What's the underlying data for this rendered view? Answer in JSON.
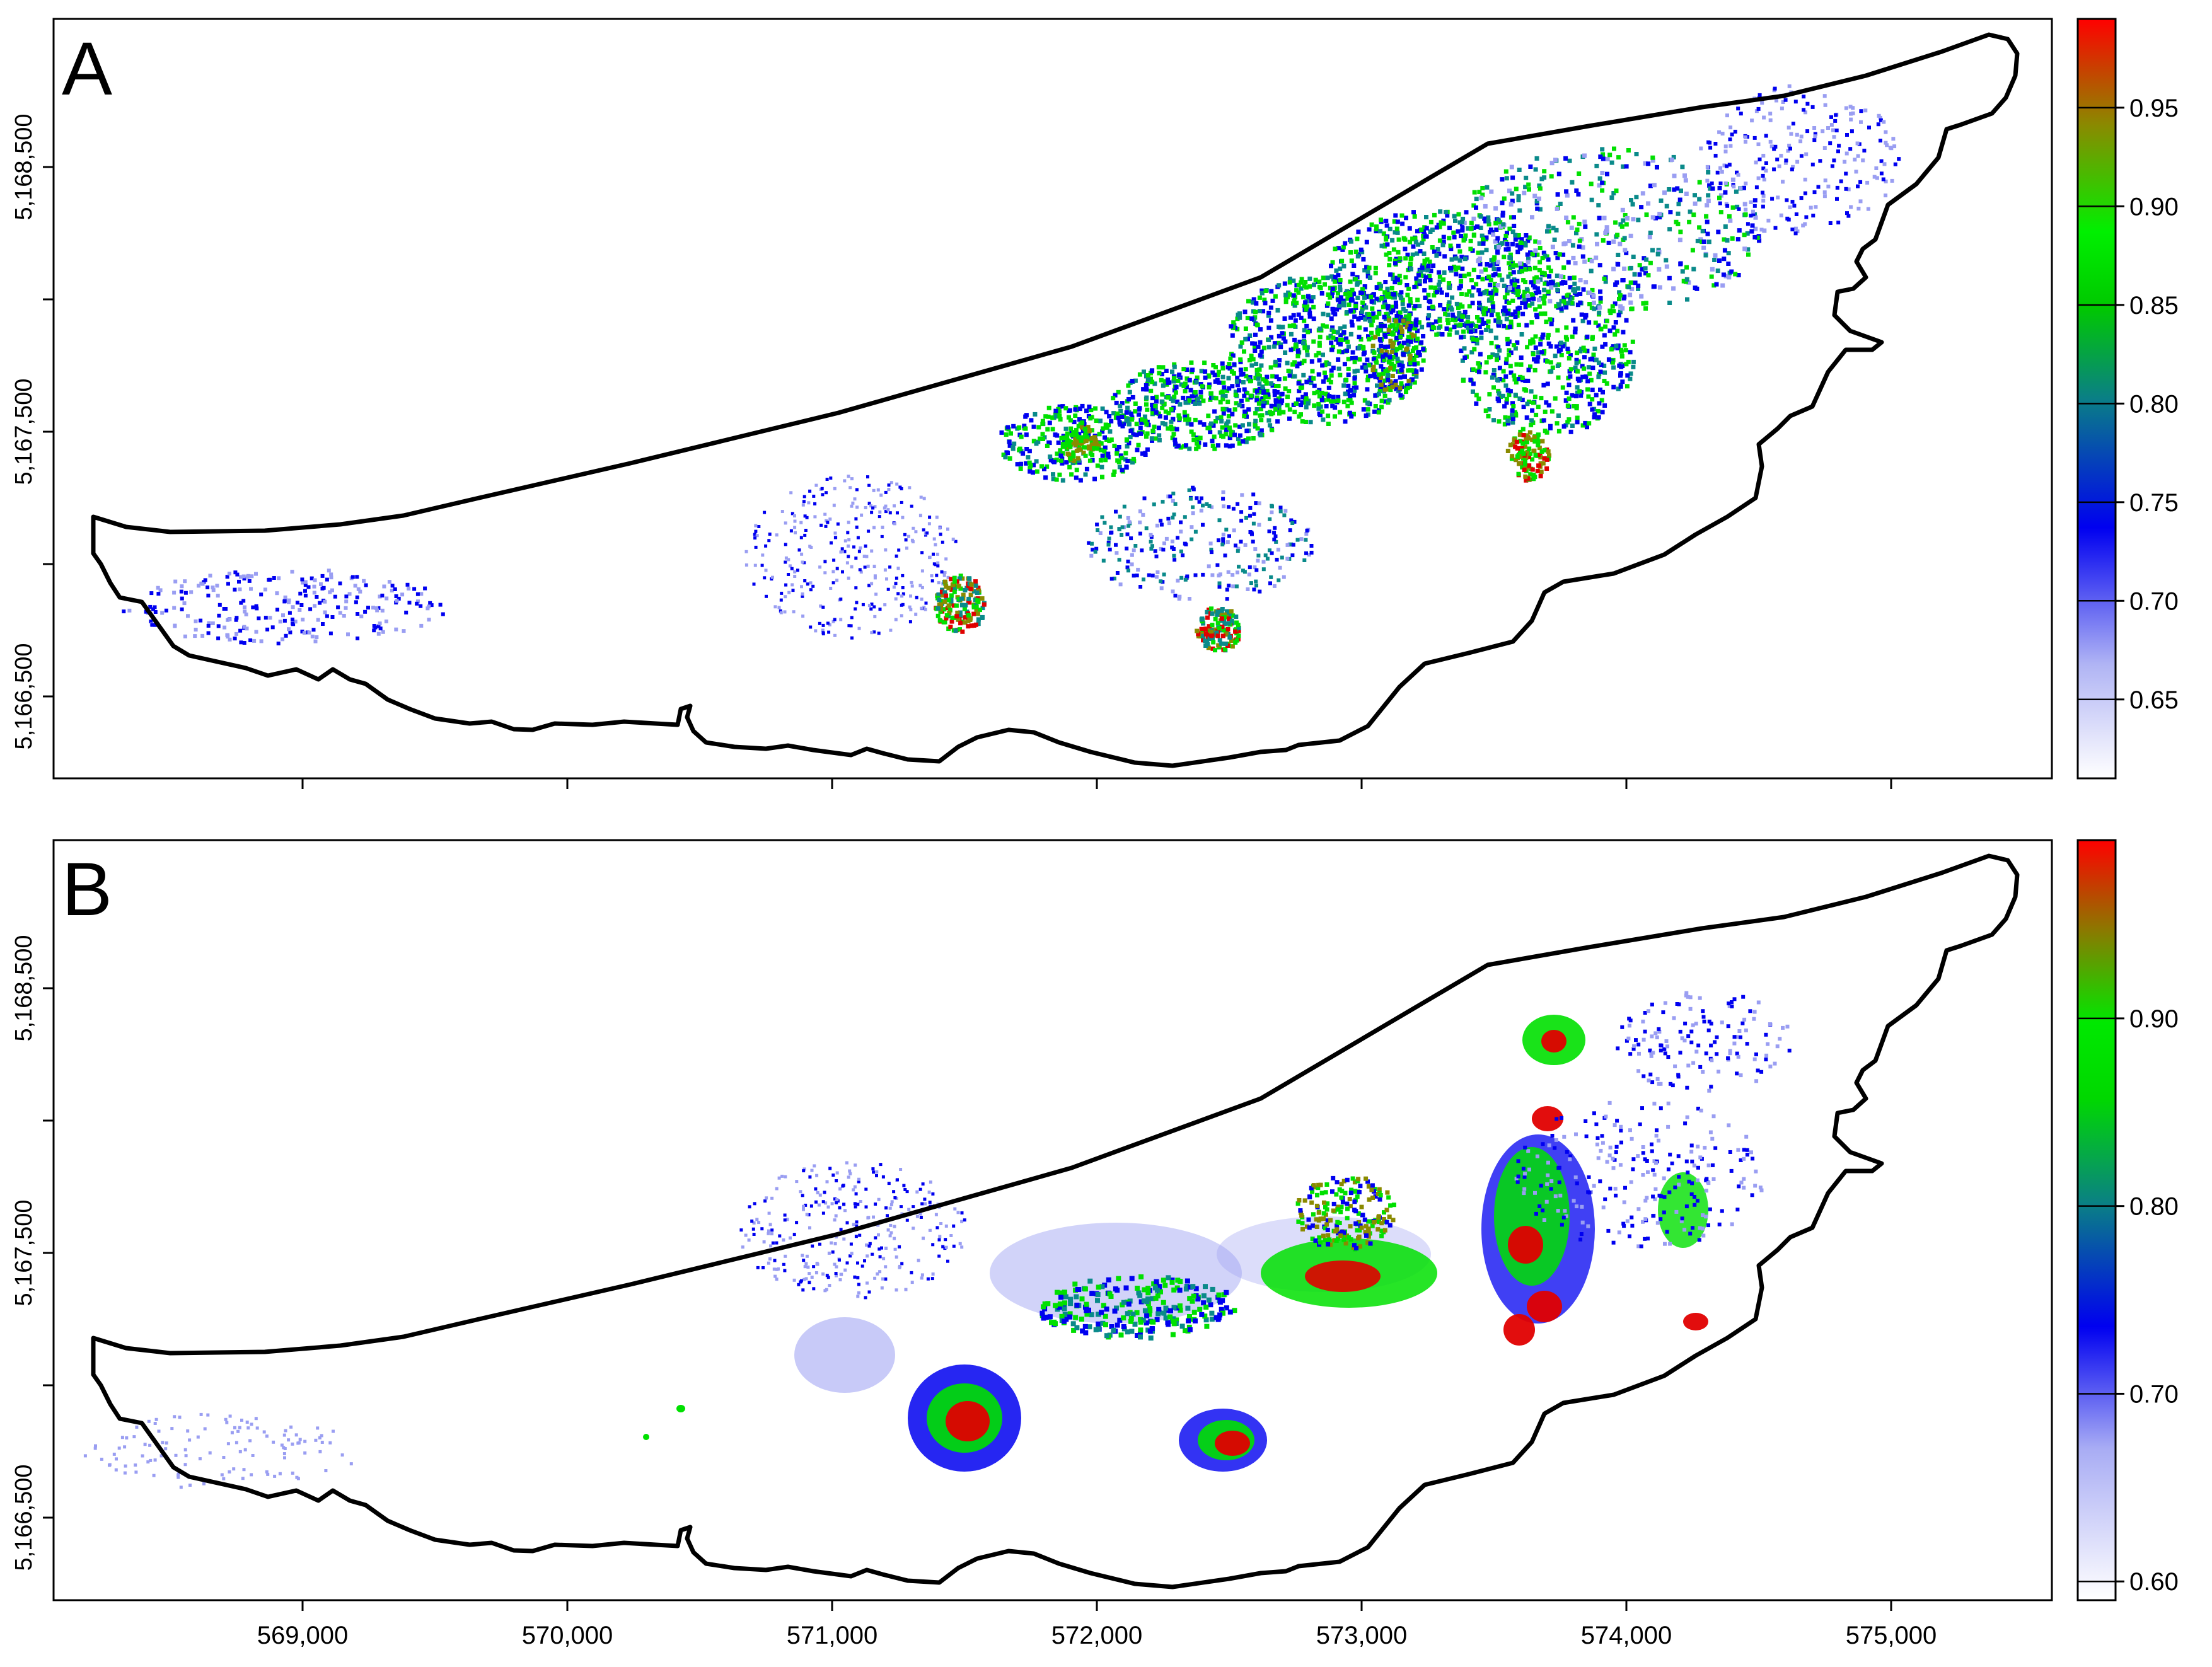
{
  "panels": [
    {
      "label": "A",
      "colorbar": {
        "ticks": [
          "0.65",
          "0.70",
          "0.75",
          "0.80",
          "0.85",
          "0.90",
          "0.95"
        ],
        "range": [
          0.61,
          0.995
        ]
      }
    },
    {
      "label": "B",
      "colorbar": {
        "ticks": [
          "0.60",
          "0.70",
          "0.80",
          "0.90"
        ],
        "range": [
          0.59,
          0.995
        ]
      }
    }
  ],
  "y_axis": {
    "ticks": [
      "5,166,500",
      "5,167,500",
      "5,168,500"
    ]
  },
  "x_axis": {
    "ticks": [
      "569,000",
      "570,000",
      "571,000",
      "572,000",
      "573,000",
      "574,000",
      "575,000"
    ]
  },
  "colors": {
    "scale": [
      "#ffffff",
      "#9a9ef2",
      "#0000f0",
      "#0a8a8a",
      "#00e000",
      "#8a8a00",
      "#e00000"
    ],
    "outline": "#000000"
  }
}
